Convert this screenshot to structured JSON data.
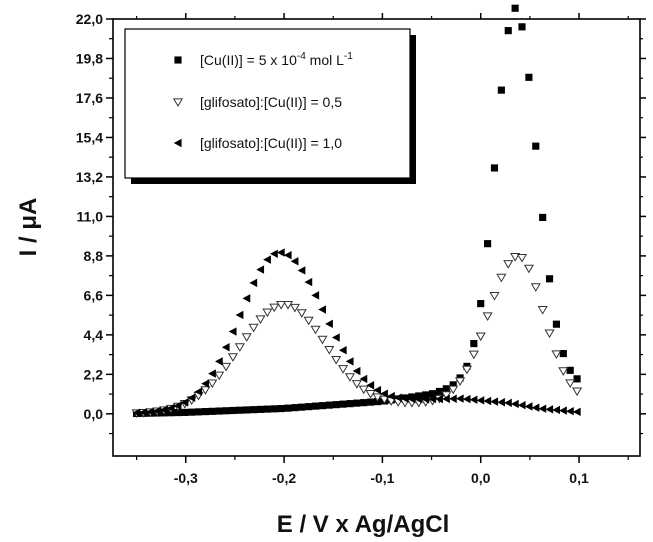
{
  "chart_data": {
    "type": "scatter",
    "xlabel": "E / V x Ag/AgCl",
    "ylabel": "I / μA",
    "xlim": [
      -0.374,
      0.162
    ],
    "ylim": [
      -2.35,
      22.0
    ],
    "xticks": [
      {
        "value": -0.3,
        "label": "-0,3"
      },
      {
        "value": -0.2,
        "label": "-0,2"
      },
      {
        "value": -0.1,
        "label": "-0,1"
      },
      {
        "value": 0.0,
        "label": "0,0"
      },
      {
        "value": 0.1,
        "label": "0,1"
      }
    ],
    "yticks": [
      {
        "value": 0.0,
        "label": "0,0"
      },
      {
        "value": 2.2,
        "label": "2,2"
      },
      {
        "value": 4.4,
        "label": "4,4"
      },
      {
        "value": 6.6,
        "label": "6,6"
      },
      {
        "value": 8.8,
        "label": "8,8"
      },
      {
        "value": 11.0,
        "label": "11,0"
      },
      {
        "value": 13.2,
        "label": "13,2"
      },
      {
        "value": 15.4,
        "label": "15,4"
      },
      {
        "value": 17.6,
        "label": "17,6"
      },
      {
        "value": 19.8,
        "label": "19,8"
      },
      {
        "value": 22.0,
        "label": "22,0"
      }
    ],
    "x_range": [
      -0.35,
      0.1
    ],
    "x_step": 0.007,
    "series": [
      {
        "name_parts": {
          "pre": "[Cu(II)] = 5 x 10",
          "sup1": "-4",
          "mid": " mol L",
          "sup2": "-1"
        },
        "marker": "square",
        "baseline": [
          [
            -0.35,
            0.02
          ],
          [
            -0.3,
            0.08
          ],
          [
            -0.2,
            0.3
          ],
          [
            -0.1,
            0.7
          ],
          [
            -0.05,
            1.1
          ],
          [
            -0.02,
            1.6
          ]
        ],
        "peaks": [
          {
            "center": 0.035,
            "height": 21.0,
            "sigma_left": 0.02,
            "sigma_right": 0.022
          }
        ]
      },
      {
        "name": "[glifosato]:[Cu(II)] = 0,5",
        "marker": "triangle-down-open",
        "baseline": [
          [
            -0.35,
            0.02
          ],
          [
            -0.3,
            0.1
          ],
          [
            -0.2,
            0.3
          ],
          [
            -0.1,
            0.5
          ],
          [
            -0.05,
            0.6
          ],
          [
            0.0,
            0.7
          ]
        ],
        "peaks": [
          {
            "center": -0.2,
            "height": 5.8,
            "sigma_left": 0.045,
            "sigma_right": 0.042
          },
          {
            "center": 0.038,
            "height": 8.1,
            "sigma_left": 0.03,
            "sigma_right": 0.026
          }
        ]
      },
      {
        "name": "[glifosato]:[Cu(II)] = 1,0",
        "marker": "triangle-left",
        "baseline": [
          [
            -0.35,
            0.05
          ],
          [
            -0.3,
            0.15
          ],
          [
            -0.2,
            0.3
          ],
          [
            -0.1,
            0.6
          ],
          [
            -0.05,
            0.8
          ],
          [
            -0.02,
            0.85
          ],
          [
            0.03,
            0.6
          ],
          [
            0.06,
            0.3
          ],
          [
            0.1,
            0.1
          ]
        ],
        "peaks": [
          {
            "center": -0.205,
            "height": 8.7,
            "sigma_left": 0.04,
            "sigma_right": 0.045
          }
        ]
      }
    ],
    "legend_position": "top-left",
    "grid": false
  }
}
